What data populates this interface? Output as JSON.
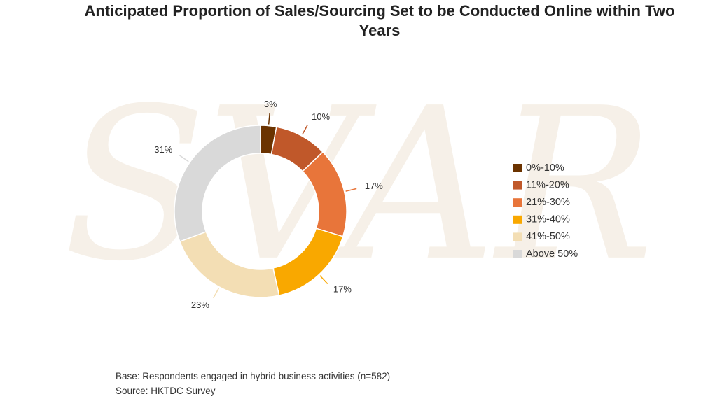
{
  "chart_data": {
    "type": "donut",
    "title": "Anticipated Proportion of Sales/Sourcing Set to be Conducted Online within Two Years",
    "categories": [
      "0%-10%",
      "11%-20%",
      "21%-30%",
      "31%-40%",
      "41%-50%",
      "Above 50%"
    ],
    "values": [
      3,
      10,
      17,
      17,
      23,
      31
    ],
    "value_labels": [
      "3%",
      "10%",
      "17%",
      "17%",
      "23%",
      "31%"
    ],
    "colors": [
      "#6b3300",
      "#c0582a",
      "#e8753a",
      "#f9a800",
      "#f3deb4",
      "#d9d9d9"
    ],
    "legend": "right",
    "notes": [
      "Base: Respondents engaged in hybrid business activities (n=582)",
      "Source: HKTDC Survey"
    ]
  },
  "watermark": "SVAR"
}
